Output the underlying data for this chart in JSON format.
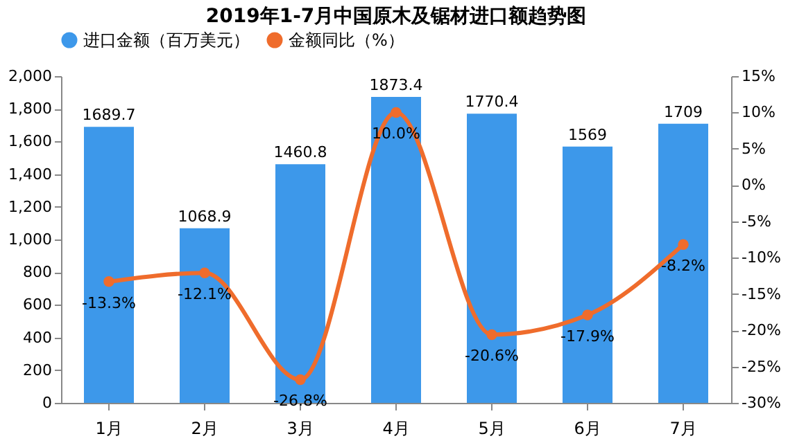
{
  "chart_data": {
    "type": "bar",
    "title": "2019年1-7月中国原木及锯材进口额趋势图",
    "categories": [
      "1月",
      "2月",
      "3月",
      "4月",
      "5月",
      "6月",
      "7月"
    ],
    "series": [
      {
        "name": "进口金额（百万美元）",
        "color": "#3d98ea",
        "values": [
          1689.7,
          1068.9,
          1460.8,
          1873.4,
          1770.4,
          1569,
          1709
        ],
        "value_labels": [
          "1689.7",
          "1068.9",
          "1460.8",
          "1873.4",
          "1770.4",
          "1569",
          "1709"
        ]
      },
      {
        "name": "金额同比（%）",
        "type": "line",
        "axis": "y2",
        "color": "#ef6c2c",
        "marker": "circle",
        "values": [
          -13.3,
          -12.1,
          -26.8,
          10.0,
          -20.6,
          -17.9,
          -8.2
        ],
        "value_labels": [
          "-13.3%",
          "-12.1%",
          "-26.8%",
          "10.0%",
          "-20.6%",
          "-17.9%",
          "-8.2%"
        ]
      }
    ],
    "ylim": [
      0,
      2000
    ],
    "yticks": [
      0,
      200,
      400,
      600,
      800,
      {
        "value": 1000,
        "label": "1,000"
      },
      {
        "value": 1200,
        "label": "1,200"
      },
      {
        "value": 1400,
        "label": "1,400"
      },
      {
        "value": 1600,
        "label": "1,600"
      },
      {
        "value": 1800,
        "label": "1,800"
      },
      {
        "value": 2000,
        "label": "2,000"
      }
    ],
    "y2lim": [
      -30,
      15
    ],
    "y2ticks": [
      {
        "value": -30,
        "label": "-30%"
      },
      {
        "value": -25,
        "label": "-25%"
      },
      {
        "value": -20,
        "label": "-20%"
      },
      {
        "value": -15,
        "label": "-15%"
      },
      {
        "value": -10,
        "label": "-10%"
      },
      {
        "value": -5,
        "label": "-5%"
      },
      {
        "value": 0,
        "label": "0%"
      },
      {
        "value": 5,
        "label": "5%"
      },
      {
        "value": 10,
        "label": "10%"
      },
      {
        "value": 15,
        "label": "15%"
      }
    ],
    "legend": "top",
    "grid": false
  }
}
